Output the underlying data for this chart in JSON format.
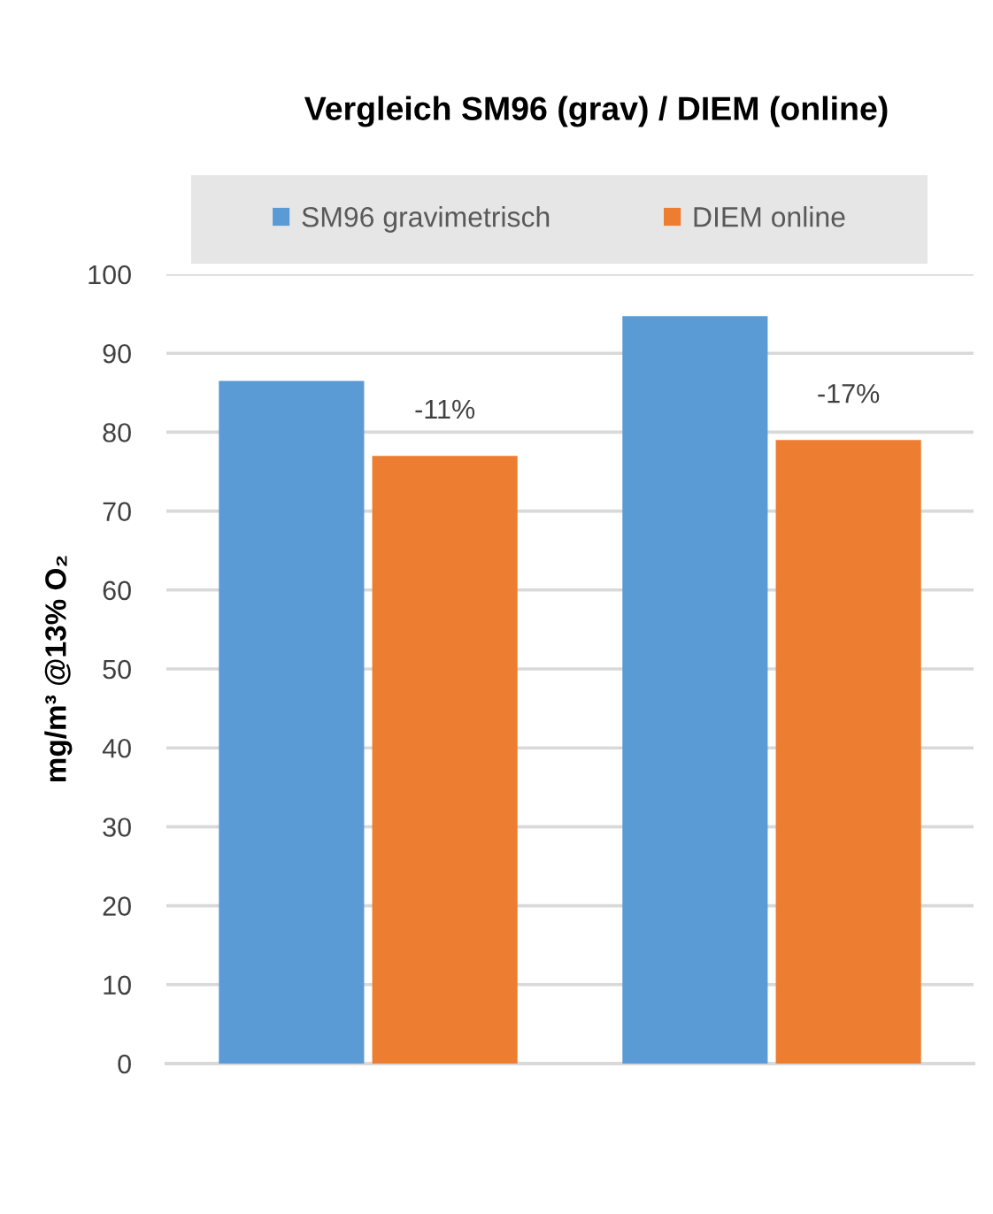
{
  "chart_data": {
    "type": "bar",
    "title": "Vergleich SM96 (grav) / DIEM (online)",
    "ylabel": "mg/m³ @13% O₂",
    "categories": [
      null,
      null
    ],
    "series": [
      {
        "name": "SM96 gravimetrisch",
        "color": "#5b9bd5",
        "values": [
          86.5,
          94.7
        ]
      },
      {
        "name": "DIEM online",
        "color": "#ed7d31",
        "values": [
          77,
          79
        ]
      }
    ],
    "annotations": [
      {
        "text": "-11%",
        "y": 77
      },
      {
        "text": "-17%",
        "y": 79
      }
    ],
    "ylim": [
      0,
      100
    ],
    "yticks": [
      0,
      10,
      20,
      30,
      40,
      50,
      60,
      70,
      80,
      90,
      100
    ],
    "grid": "y",
    "legend": "top"
  }
}
